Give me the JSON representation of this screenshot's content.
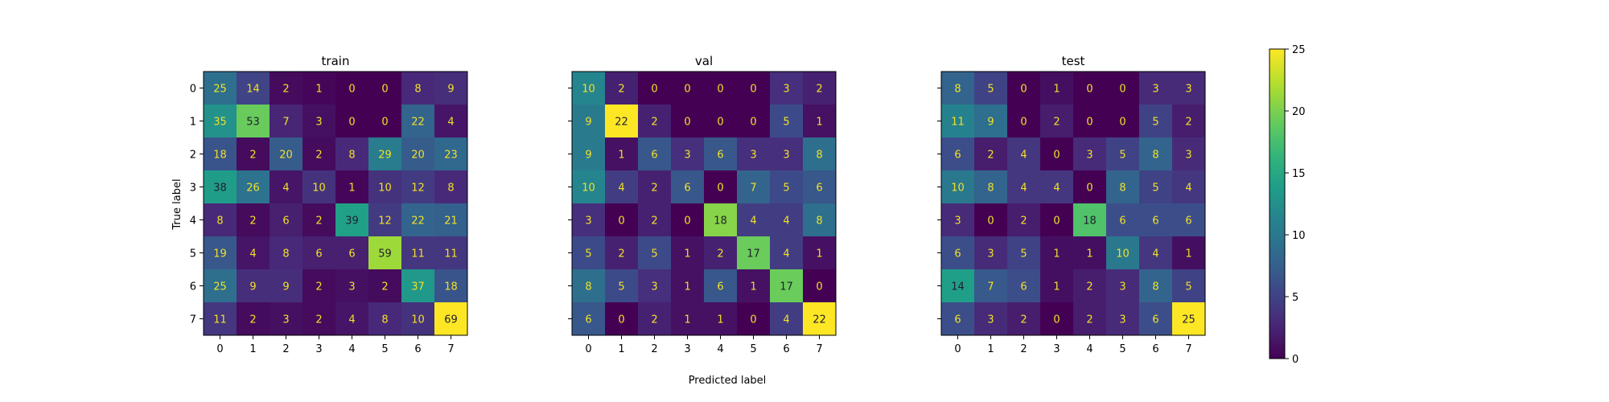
{
  "figure": {
    "xlabel": "Predicted label",
    "ylabel": "True label"
  },
  "colorbar": {
    "ticks": [
      0,
      5,
      10,
      15,
      20,
      25
    ],
    "min": 0,
    "max": 25,
    "colormap": "viridis"
  },
  "chart_data": [
    {
      "type": "heatmap",
      "title": "train",
      "x": [
        "0",
        "1",
        "2",
        "3",
        "4",
        "5",
        "6",
        "7"
      ],
      "y": [
        "0",
        "1",
        "2",
        "3",
        "4",
        "5",
        "6",
        "7"
      ],
      "xlabel": "",
      "ylabel": "True label",
      "colormap": "viridis",
      "vmin": 0,
      "vmax": 69,
      "values": [
        [
          25,
          14,
          2,
          1,
          0,
          0,
          8,
          9
        ],
        [
          35,
          53,
          7,
          3,
          0,
          0,
          22,
          4
        ],
        [
          18,
          2,
          20,
          2,
          8,
          29,
          20,
          23
        ],
        [
          38,
          26,
          4,
          10,
          1,
          10,
          12,
          8
        ],
        [
          8,
          2,
          6,
          2,
          39,
          12,
          22,
          21
        ],
        [
          19,
          4,
          8,
          6,
          6,
          59,
          11,
          11
        ],
        [
          25,
          9,
          9,
          2,
          3,
          2,
          37,
          18
        ],
        [
          11,
          2,
          3,
          2,
          4,
          8,
          10,
          69
        ]
      ]
    },
    {
      "type": "heatmap",
      "title": "val",
      "x": [
        "0",
        "1",
        "2",
        "3",
        "4",
        "5",
        "6",
        "7"
      ],
      "y": [
        "0",
        "1",
        "2",
        "3",
        "4",
        "5",
        "6",
        "7"
      ],
      "xlabel": "Predicted label",
      "ylabel": "",
      "colormap": "viridis",
      "vmin": 0,
      "vmax": 22,
      "values": [
        [
          10,
          2,
          0,
          0,
          0,
          0,
          3,
          2
        ],
        [
          9,
          22,
          2,
          0,
          0,
          0,
          5,
          1
        ],
        [
          9,
          1,
          6,
          3,
          6,
          3,
          3,
          8
        ],
        [
          10,
          4,
          2,
          6,
          0,
          7,
          5,
          6
        ],
        [
          3,
          0,
          2,
          0,
          18,
          4,
          4,
          8
        ],
        [
          5,
          2,
          5,
          1,
          2,
          17,
          4,
          1
        ],
        [
          8,
          5,
          3,
          1,
          6,
          1,
          17,
          0
        ],
        [
          6,
          0,
          2,
          1,
          1,
          0,
          4,
          22
        ]
      ]
    },
    {
      "type": "heatmap",
      "title": "test",
      "x": [
        "0",
        "1",
        "2",
        "3",
        "4",
        "5",
        "6",
        "7"
      ],
      "y": [
        "0",
        "1",
        "2",
        "3",
        "4",
        "5",
        "6",
        "7"
      ],
      "xlabel": "",
      "ylabel": "",
      "colormap": "viridis",
      "vmin": 0,
      "vmax": 25,
      "values": [
        [
          8,
          5,
          0,
          1,
          0,
          0,
          3,
          3
        ],
        [
          11,
          9,
          0,
          2,
          0,
          0,
          5,
          2
        ],
        [
          6,
          2,
          4,
          0,
          3,
          5,
          8,
          3
        ],
        [
          10,
          8,
          4,
          4,
          0,
          8,
          5,
          4
        ],
        [
          3,
          0,
          2,
          0,
          18,
          6,
          6,
          6
        ],
        [
          6,
          3,
          5,
          1,
          1,
          10,
          4,
          1
        ],
        [
          14,
          7,
          6,
          1,
          2,
          3,
          8,
          5
        ],
        [
          6,
          3,
          2,
          0,
          2,
          3,
          6,
          25
        ]
      ]
    }
  ]
}
